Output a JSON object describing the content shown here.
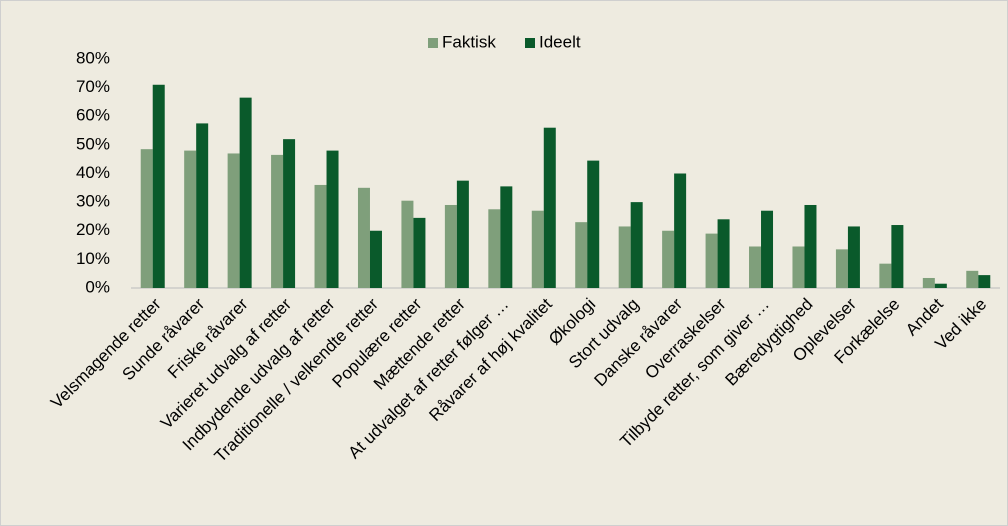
{
  "chart_data": {
    "type": "bar",
    "categories": [
      "Velsmagende retter",
      "Sunde råvarer",
      "Friske råvarer",
      "Varieret udvalg af retter",
      "Indbydende udvalg af retter",
      "Traditionelle / velkendte retter",
      "Populære retter",
      "Mættende retter",
      "At udvalget af retter følger …",
      "Råvarer af høj kvalitet",
      "Økologi",
      "Stort udvalg",
      "Danske råvarer",
      "Overraskelser",
      "Tilbyde retter, som giver …",
      "Bæredygtighed",
      "Oplevelser",
      "Forkælelse",
      "Andet",
      "Ved ikke"
    ],
    "series": [
      {
        "name": "Faktisk",
        "color": "#7f9f7b",
        "values": [
          48.5,
          48,
          47,
          46.5,
          36,
          35,
          30.5,
          29,
          27.5,
          27,
          23,
          21.5,
          20,
          19,
          14.5,
          14.5,
          13.5,
          8.5,
          3.5,
          6
        ]
      },
      {
        "name": "Ideelt",
        "color": "#0a5a2b",
        "values": [
          71,
          57.5,
          66.5,
          52,
          48,
          20,
          24.5,
          37.5,
          35.5,
          56,
          44.5,
          30,
          40,
          24,
          27,
          29,
          21.5,
          22,
          1.5,
          4.5
        ]
      }
    ],
    "ylim": [
      0,
      80
    ],
    "yticks": [
      {
        "value": 0,
        "label": "0%"
      },
      {
        "value": 10,
        "label": "10%"
      },
      {
        "value": 20,
        "label": "20%"
      },
      {
        "value": 30,
        "label": "30%"
      },
      {
        "value": 40,
        "label": "40%"
      },
      {
        "value": 50,
        "label": "50%"
      },
      {
        "value": 60,
        "label": "60%"
      },
      {
        "value": 70,
        "label": "70%"
      },
      {
        "value": 80,
        "label": "80%"
      }
    ],
    "legend": "top"
  }
}
